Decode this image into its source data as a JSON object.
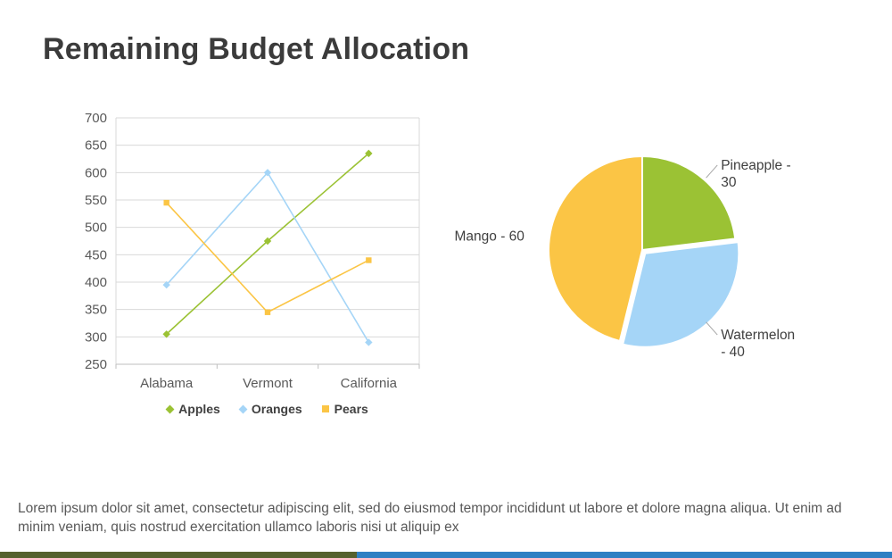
{
  "title": "Remaining Budget Allocation",
  "body_text": "Lorem ipsum dolor sit amet, consectetur adipiscing elit, sed do eiusmod tempor incididunt ut labore et dolore magna aliqua. Ut enim ad minim veniam, quis nostrud exercitation ullamco laboris nisi ut aliquip ex",
  "chart_data": [
    {
      "type": "line",
      "title": "",
      "categories": [
        "Alabama",
        "Vermont",
        "California"
      ],
      "series": [
        {
          "name": "Apples",
          "color": "#9BC234",
          "marker": "diamond",
          "values": [
            305,
            475,
            635
          ]
        },
        {
          "name": "Oranges",
          "color": "#A5D5F7",
          "marker": "diamond",
          "values": [
            395,
            600,
            290
          ]
        },
        {
          "name": "Pears",
          "color": "#FBC545",
          "marker": "square",
          "values": [
            545,
            345,
            440
          ]
        }
      ],
      "ylim": [
        250,
        700
      ],
      "ytick_step": 50,
      "grid": true,
      "legend_position": "bottom",
      "grid_color": "#D9D9D9",
      "axis_color": "#BFBFBF",
      "label_color": "#595959"
    },
    {
      "type": "pie",
      "slices": [
        {
          "label": "Pineapple",
          "value": 30,
          "color": "#9BC234",
          "display_lines": [
            "Pineapple -",
            "30"
          ],
          "leader": true,
          "exploded": false
        },
        {
          "label": "Watermelon",
          "value": 40,
          "color": "#A5D5F7",
          "display_lines": [
            "Watermelon",
            "- 40"
          ],
          "leader": true,
          "exploded": true
        },
        {
          "label": "Mango",
          "value": 60,
          "color": "#FBC545",
          "display_lines": [
            "Mango - 60"
          ],
          "leader": false,
          "exploded": false
        }
      ],
      "start_angle_deg": 0,
      "direction": "clockwise",
      "label_color": "#404040",
      "leader_color": "#A6A6A6"
    }
  ],
  "footer": {
    "left_color": "#55612E",
    "right_color": "#2E80C3"
  }
}
